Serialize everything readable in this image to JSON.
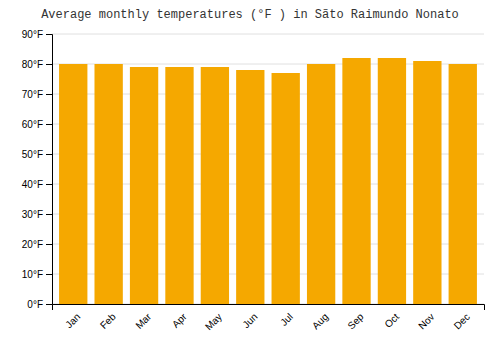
{
  "chart_data": {
    "type": "bar",
    "title": "Average monthly temperatures (°F ) in Sãto Raimundo Nonato",
    "categories": [
      "Jan",
      "Feb",
      "Mar",
      "Apr",
      "May",
      "Jun",
      "Jul",
      "Aug",
      "Sep",
      "Oct",
      "Nov",
      "Dec"
    ],
    "values": [
      80,
      80,
      79,
      79,
      79,
      78,
      77,
      80,
      82,
      82,
      81,
      80
    ],
    "color": "#F5A800",
    "ylim": [
      0,
      90
    ],
    "yticks": [
      {
        "value": 0,
        "label": "0°F"
      },
      {
        "value": 10,
        "label": "10°F"
      },
      {
        "value": 20,
        "label": "20°F"
      },
      {
        "value": 30,
        "label": "30°F"
      },
      {
        "value": 40,
        "label": "40°F"
      },
      {
        "value": 50,
        "label": "50°F"
      },
      {
        "value": 60,
        "label": "60°F"
      },
      {
        "value": 70,
        "label": "70°F"
      },
      {
        "value": 80,
        "label": "80°F"
      },
      {
        "value": 90,
        "label": "90°F"
      }
    ],
    "grid": true
  }
}
